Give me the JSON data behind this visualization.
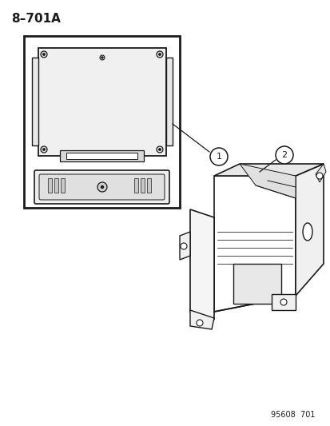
{
  "title": "8–701A",
  "background_color": "#ffffff",
  "line_color": "#1a1a1a",
  "fig_width": 4.14,
  "fig_height": 5.33,
  "dpi": 100,
  "footer_text": "95608  701",
  "label1": "1",
  "label2": "2"
}
